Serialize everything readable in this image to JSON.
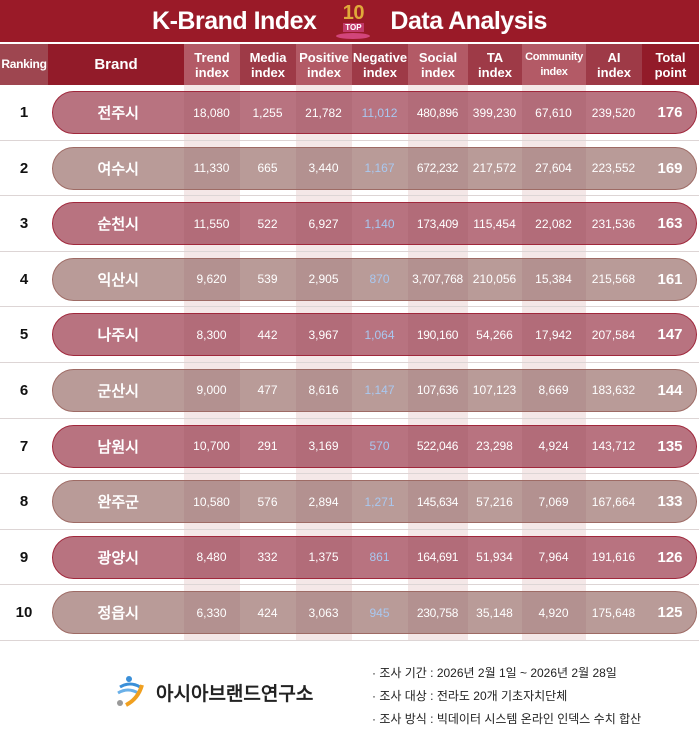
{
  "title": {
    "left": "K-Brand Index",
    "badge_number": "10",
    "badge_text": "TOP",
    "right": "Data Analysis"
  },
  "headers": [
    "Ranking",
    "Brand",
    "Trend\nindex",
    "Media\nindex",
    "Positive\nindex",
    "Negative\nindex",
    "Social\nindex",
    "TA\nindex",
    "Community\nindex",
    "AI\nindex",
    "Total\npoint"
  ],
  "colors": {
    "header": "#9a1a28",
    "odd_row": "#b87380",
    "even_row": "#b99b98",
    "negative_text": "#a9c8f0"
  },
  "rows": [
    [
      "1",
      "전주시",
      "18,080",
      "1,255",
      "21,782",
      "11,012",
      "480,896",
      "399,230",
      "67,610",
      "239,520",
      "176"
    ],
    [
      "2",
      "여수시",
      "11,330",
      "665",
      "3,440",
      "1,167",
      "672,232",
      "217,572",
      "27,604",
      "223,552",
      "169"
    ],
    [
      "3",
      "순천시",
      "11,550",
      "522",
      "6,927",
      "1,140",
      "173,409",
      "115,454",
      "22,082",
      "231,536",
      "163"
    ],
    [
      "4",
      "익산시",
      "9,620",
      "539",
      "2,905",
      "870",
      "3,707,768",
      "210,056",
      "15,384",
      "215,568",
      "161"
    ],
    [
      "5",
      "나주시",
      "8,300",
      "442",
      "3,967",
      "1,064",
      "190,160",
      "54,266",
      "17,942",
      "207,584",
      "147"
    ],
    [
      "6",
      "군산시",
      "9,000",
      "477",
      "8,616",
      "1,147",
      "107,636",
      "107,123",
      "8,669",
      "183,632",
      "144"
    ],
    [
      "7",
      "남원시",
      "10,700",
      "291",
      "3,169",
      "570",
      "522,046",
      "23,298",
      "4,924",
      "143,712",
      "135"
    ],
    [
      "8",
      "완주군",
      "10,580",
      "576",
      "2,894",
      "1,271",
      "145,634",
      "57,216",
      "7,069",
      "167,664",
      "133"
    ],
    [
      "9",
      "광양시",
      "8,480",
      "332",
      "1,375",
      "861",
      "164,691",
      "51,934",
      "7,964",
      "191,616",
      "126"
    ],
    [
      "10",
      "정읍시",
      "6,330",
      "424",
      "3,063",
      "945",
      "230,758",
      "35,148",
      "4,920",
      "175,648",
      "125"
    ]
  ],
  "footer": {
    "logo_name": "아시아브랜드연구소",
    "notes": [
      "· 조사 기간 : 2026년 2월 1일 ~ 2026년 2월 28일",
      "· 조사 대상 : 전라도 20개 기초자치단체",
      "· 조사 방식 : 빅데이터 시스템 온라인 인덱스 수치 합산"
    ]
  }
}
